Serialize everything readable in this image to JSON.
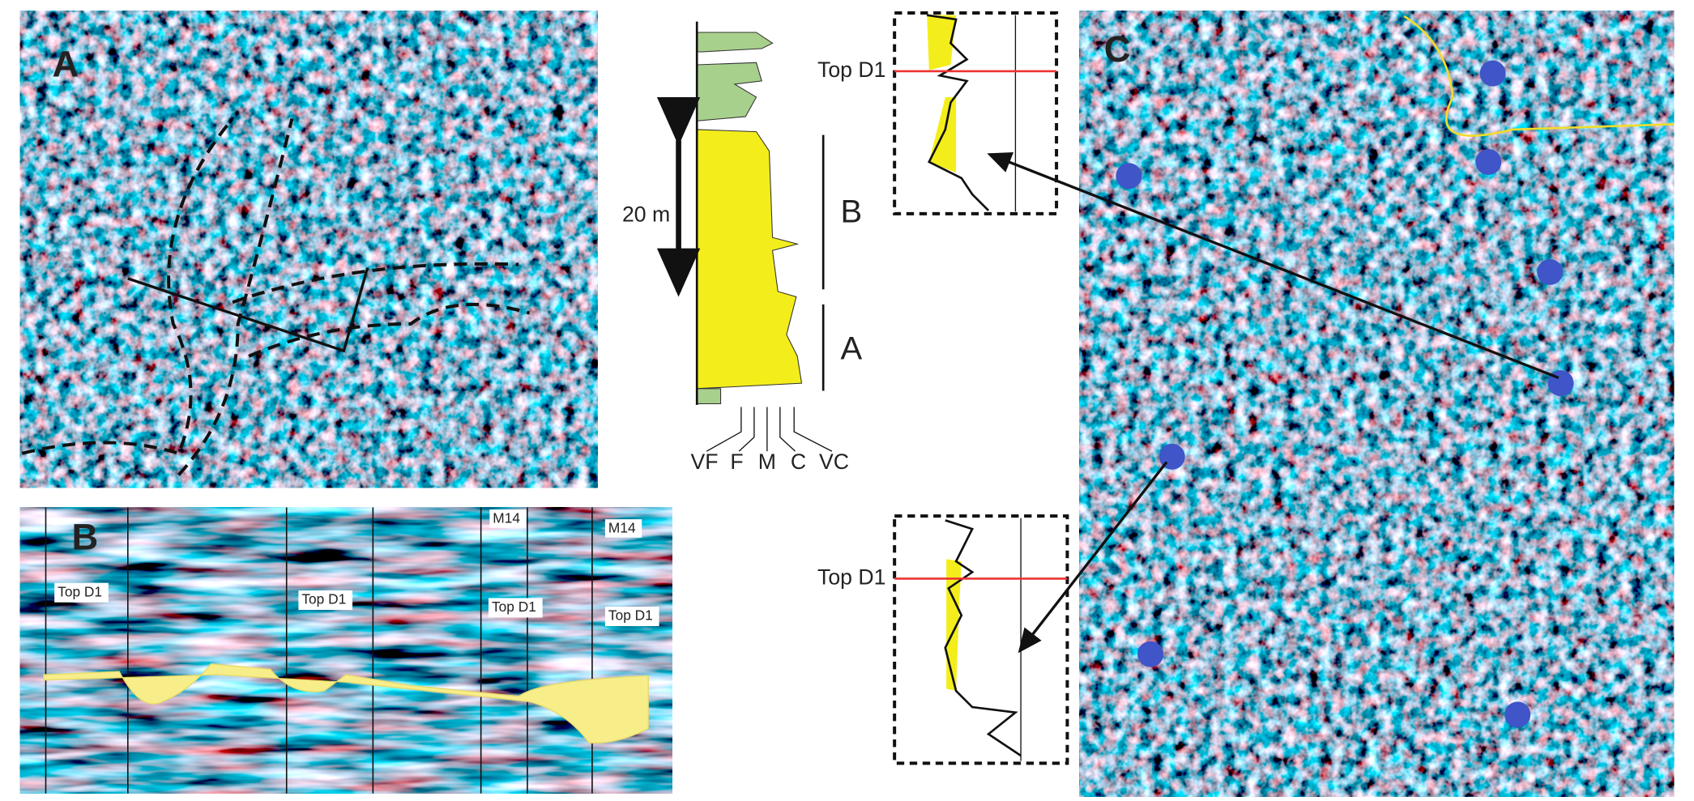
{
  "panels": {
    "a": {
      "label": "A"
    },
    "b": {
      "label": "B",
      "well_labels": [
        "M14",
        "M14"
      ],
      "horizon_labels": [
        "Top D1",
        "Top D1",
        "Top D1",
        "Top D1"
      ]
    },
    "c": {
      "label": "C"
    }
  },
  "log": {
    "scale": "20 m",
    "intervals": [
      "B",
      "A"
    ],
    "grain_sizes": [
      "VF",
      "F",
      "M",
      "C",
      "VC"
    ]
  },
  "insets": [
    {
      "horizon": "Top D1"
    },
    {
      "horizon": "Top D1"
    }
  ]
}
